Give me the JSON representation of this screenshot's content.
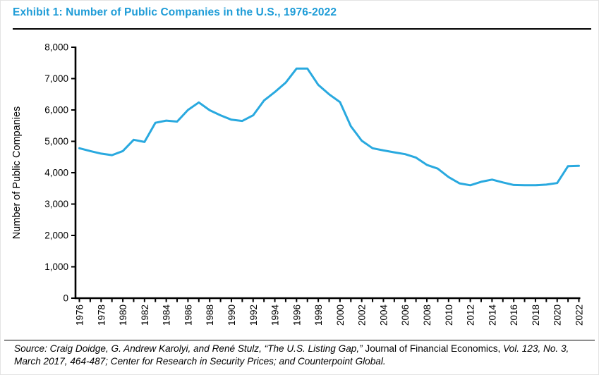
{
  "page": {
    "title": "Exhibit 1: Number of Public Companies in the U.S., 1976-2022",
    "title_color": "#1E9CD7"
  },
  "source": {
    "part1_italic": "Source: Craig Doidge, G. Andrew Karolyi, and René Stulz, “The U.S. Listing Gap,” ",
    "part2_upright": "Journal of Financial Economics,",
    "part3_italic": " Vol. 123, No. 3, March 2017, 464-487; Center for Research in Security Prices; and Counterpoint Global."
  },
  "chart_data": {
    "type": "line",
    "title": "Exhibit 1: Number of Public Companies in the U.S., 1976-2022",
    "xlabel": "",
    "ylabel": "Number of Public Companies",
    "series_name": "Number of public companies in the U.S.",
    "x": [
      1976,
      1977,
      1978,
      1979,
      1980,
      1981,
      1982,
      1983,
      1984,
      1985,
      1986,
      1987,
      1988,
      1989,
      1990,
      1991,
      1992,
      1993,
      1994,
      1995,
      1996,
      1997,
      1998,
      1999,
      2000,
      2001,
      2002,
      2003,
      2004,
      2005,
      2006,
      2007,
      2008,
      2009,
      2010,
      2011,
      2012,
      2013,
      2014,
      2015,
      2016,
      2017,
      2018,
      2019,
      2020,
      2021,
      2022
    ],
    "values": [
      4780,
      4690,
      4610,
      4560,
      4690,
      5050,
      4980,
      5590,
      5660,
      5630,
      6000,
      6240,
      5990,
      5830,
      5690,
      5650,
      5830,
      6300,
      6570,
      6870,
      7320,
      7320,
      6800,
      6500,
      6250,
      5480,
      5020,
      4780,
      4710,
      4650,
      4590,
      4480,
      4250,
      4130,
      3860,
      3660,
      3600,
      3710,
      3780,
      3690,
      3610,
      3600,
      3600,
      3620,
      3670,
      4210,
      4220
    ],
    "ylim": [
      0,
      8000
    ],
    "ytick_step": 1000,
    "ytick_labels": [
      "0",
      "1,000",
      "2,000",
      "3,000",
      "4,000",
      "5,000",
      "6,000",
      "7,000",
      "8,000"
    ],
    "xtick_minor_step": 1,
    "xtick_label_step": 2,
    "xtick_labels": [
      "1976",
      "1978",
      "1980",
      "1982",
      "1984",
      "1986",
      "1988",
      "1990",
      "1992",
      "1994",
      "1996",
      "1998",
      "2000",
      "2002",
      "2004",
      "2006",
      "2008",
      "2010",
      "2012",
      "2014",
      "2016",
      "2018",
      "2020",
      "2022"
    ],
    "grid": false,
    "legend": "none",
    "line_color": "#29A9DF",
    "axis_color": "#000000"
  }
}
